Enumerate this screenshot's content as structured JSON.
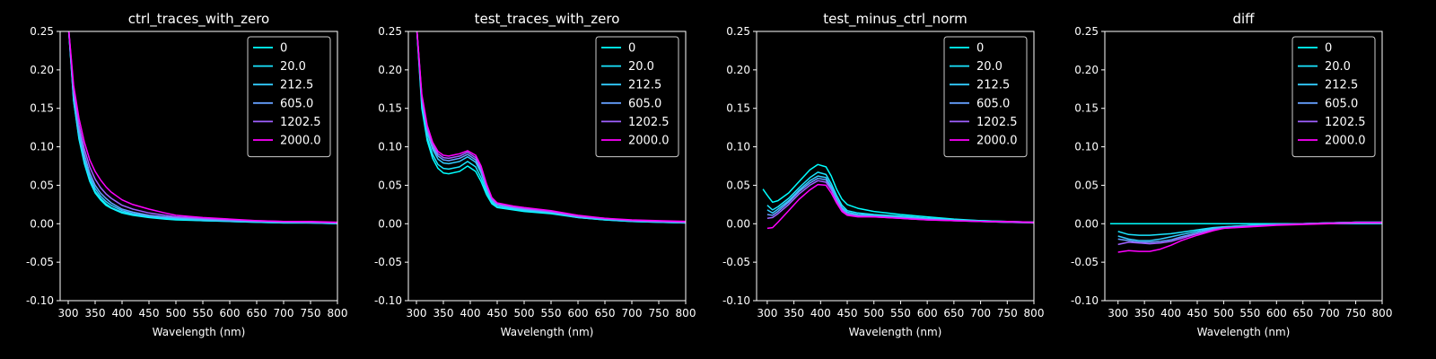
{
  "chart_data": [
    {
      "type": "line",
      "title": "ctrl_traces_with_zero",
      "xlabel": "Wavelength (nm)",
      "ylabel": "",
      "xlim": [
        285,
        800
      ],
      "ylim": [
        -0.1,
        0.25
      ],
      "xticks": [
        300,
        350,
        400,
        450,
        500,
        550,
        600,
        650,
        700,
        750,
        800
      ],
      "yticks": [
        -0.1,
        -0.05,
        0.0,
        0.05,
        0.1,
        0.15,
        0.2,
        0.25
      ],
      "legend": "top-right",
      "x": [
        300,
        310,
        320,
        330,
        340,
        350,
        360,
        370,
        380,
        400,
        420,
        450,
        480,
        500,
        550,
        600,
        650,
        700,
        750,
        800
      ],
      "series": [
        {
          "name": "0",
          "color": "#00ffff",
          "values": [
            0.26,
            0.16,
            0.11,
            0.078,
            0.055,
            0.04,
            0.031,
            0.024,
            0.02,
            0.014,
            0.011,
            0.008,
            0.006,
            0.005,
            0.004,
            0.003,
            0.002,
            0.001,
            0.001,
            0.0
          ]
        },
        {
          "name": "20.0",
          "color": "#1ae5ff",
          "values": [
            0.26,
            0.16,
            0.112,
            0.08,
            0.057,
            0.042,
            0.033,
            0.026,
            0.021,
            0.015,
            0.012,
            0.009,
            0.007,
            0.006,
            0.004,
            0.003,
            0.002,
            0.001,
            0.001,
            0.0
          ]
        },
        {
          "name": "212.5",
          "color": "#33ccff",
          "values": [
            0.26,
            0.165,
            0.116,
            0.084,
            0.061,
            0.046,
            0.036,
            0.029,
            0.024,
            0.017,
            0.013,
            0.01,
            0.008,
            0.007,
            0.005,
            0.004,
            0.003,
            0.002,
            0.001,
            0.001
          ]
        },
        {
          "name": "605.0",
          "color": "#66a0ff",
          "values": [
            0.26,
            0.17,
            0.122,
            0.09,
            0.066,
            0.05,
            0.04,
            0.033,
            0.027,
            0.019,
            0.015,
            0.011,
            0.009,
            0.008,
            0.006,
            0.004,
            0.003,
            0.002,
            0.002,
            0.001
          ]
        },
        {
          "name": "1202.5",
          "color": "#a060ff",
          "values": [
            0.26,
            0.175,
            0.128,
            0.097,
            0.074,
            0.058,
            0.047,
            0.039,
            0.033,
            0.024,
            0.019,
            0.014,
            0.011,
            0.009,
            0.007,
            0.005,
            0.004,
            0.003,
            0.002,
            0.001
          ]
        },
        {
          "name": "2000.0",
          "color": "#ff00ff",
          "values": [
            0.26,
            0.18,
            0.137,
            0.106,
            0.083,
            0.068,
            0.057,
            0.048,
            0.041,
            0.031,
            0.025,
            0.019,
            0.014,
            0.011,
            0.008,
            0.006,
            0.004,
            0.003,
            0.003,
            0.002
          ]
        }
      ]
    },
    {
      "type": "line",
      "title": "test_traces_with_zero",
      "xlabel": "Wavelength (nm)",
      "ylabel": "",
      "xlim": [
        285,
        800
      ],
      "ylim": [
        -0.1,
        0.25
      ],
      "xticks": [
        300,
        350,
        400,
        450,
        500,
        550,
        600,
        650,
        700,
        750,
        800
      ],
      "yticks": [
        -0.1,
        -0.05,
        0.0,
        0.05,
        0.1,
        0.15,
        0.2,
        0.25
      ],
      "legend": "top-right",
      "x": [
        300,
        310,
        320,
        330,
        340,
        350,
        360,
        380,
        395,
        410,
        420,
        430,
        440,
        450,
        480,
        500,
        550,
        600,
        650,
        700,
        750,
        800
      ],
      "series": [
        {
          "name": "0",
          "color": "#00ffff",
          "values": [
            0.26,
            0.15,
            0.108,
            0.085,
            0.072,
            0.066,
            0.065,
            0.068,
            0.075,
            0.068,
            0.055,
            0.038,
            0.026,
            0.021,
            0.018,
            0.016,
            0.013,
            0.008,
            0.005,
            0.003,
            0.002,
            0.001
          ]
        },
        {
          "name": "20.0",
          "color": "#1ae5ff",
          "values": [
            0.26,
            0.155,
            0.112,
            0.09,
            0.077,
            0.072,
            0.071,
            0.074,
            0.081,
            0.074,
            0.06,
            0.042,
            0.028,
            0.022,
            0.019,
            0.017,
            0.014,
            0.008,
            0.005,
            0.003,
            0.002,
            0.001
          ]
        },
        {
          "name": "212.5",
          "color": "#33ccff",
          "values": [
            0.26,
            0.16,
            0.118,
            0.097,
            0.084,
            0.079,
            0.078,
            0.081,
            0.087,
            0.08,
            0.066,
            0.046,
            0.03,
            0.024,
            0.02,
            0.018,
            0.015,
            0.009,
            0.006,
            0.004,
            0.003,
            0.002
          ]
        },
        {
          "name": "605.0",
          "color": "#66a0ff",
          "values": [
            0.26,
            0.163,
            0.122,
            0.1,
            0.088,
            0.083,
            0.082,
            0.085,
            0.09,
            0.083,
            0.069,
            0.048,
            0.031,
            0.025,
            0.021,
            0.019,
            0.015,
            0.009,
            0.006,
            0.004,
            0.003,
            0.002
          ]
        },
        {
          "name": "1202.5",
          "color": "#a060ff",
          "values": [
            0.26,
            0.165,
            0.125,
            0.103,
            0.091,
            0.086,
            0.085,
            0.088,
            0.093,
            0.086,
            0.072,
            0.05,
            0.033,
            0.026,
            0.022,
            0.02,
            0.016,
            0.01,
            0.007,
            0.004,
            0.003,
            0.002
          ]
        },
        {
          "name": "2000.0",
          "color": "#ff00ff",
          "values": [
            0.26,
            0.168,
            0.128,
            0.106,
            0.094,
            0.089,
            0.088,
            0.091,
            0.095,
            0.089,
            0.075,
            0.052,
            0.034,
            0.027,
            0.023,
            0.021,
            0.017,
            0.011,
            0.007,
            0.005,
            0.004,
            0.003
          ]
        }
      ]
    },
    {
      "type": "line",
      "title": "test_minus_ctrl_norm",
      "xlabel": "Wavelength (nm)",
      "ylabel": "",
      "xlim": [
        280,
        800
      ],
      "ylim": [
        -0.1,
        0.25
      ],
      "xticks": [
        300,
        350,
        400,
        450,
        500,
        550,
        600,
        650,
        700,
        750,
        800
      ],
      "yticks": [
        -0.1,
        -0.05,
        0.0,
        0.05,
        0.1,
        0.15,
        0.2,
        0.25
      ],
      "legend": "top-right",
      "x": [
        292,
        300,
        310,
        320,
        340,
        360,
        380,
        395,
        410,
        420,
        430,
        440,
        450,
        470,
        500,
        550,
        600,
        650,
        700,
        750,
        800
      ],
      "series": [
        {
          "name": "0",
          "color": "#00ffff",
          "values": [
            0.045,
            0.037,
            0.028,
            0.03,
            0.04,
            0.055,
            0.07,
            0.077,
            0.074,
            0.062,
            0.045,
            0.032,
            0.025,
            0.02,
            0.016,
            0.012,
            0.009,
            0.006,
            0.004,
            0.003,
            0.002
          ]
        },
        {
          "name": "20.0",
          "color": "#1ae5ff",
          "values": [
            null,
            0.024,
            0.018,
            0.022,
            0.033,
            0.047,
            0.06,
            0.067,
            0.064,
            0.052,
            0.037,
            0.024,
            0.017,
            0.014,
            0.012,
            0.01,
            0.007,
            0.005,
            0.004,
            0.003,
            0.002
          ]
        },
        {
          "name": "212.5",
          "color": "#33ccff",
          "values": [
            null,
            0.018,
            0.014,
            0.019,
            0.03,
            0.044,
            0.056,
            0.062,
            0.06,
            0.048,
            0.033,
            0.021,
            0.015,
            0.012,
            0.011,
            0.009,
            0.007,
            0.005,
            0.003,
            0.002,
            0.002
          ]
        },
        {
          "name": "605.0",
          "color": "#66a0ff",
          "values": [
            null,
            0.012,
            0.011,
            0.016,
            0.028,
            0.042,
            0.053,
            0.059,
            0.057,
            0.046,
            0.031,
            0.019,
            0.013,
            0.011,
            0.01,
            0.008,
            0.006,
            0.004,
            0.003,
            0.002,
            0.001
          ]
        },
        {
          "name": "1202.5",
          "color": "#a060ff",
          "values": [
            null,
            0.007,
            0.008,
            0.013,
            0.025,
            0.039,
            0.05,
            0.056,
            0.054,
            0.044,
            0.03,
            0.018,
            0.012,
            0.01,
            0.009,
            0.007,
            0.005,
            0.004,
            0.003,
            0.002,
            0.001
          ]
        },
        {
          "name": "2000.0",
          "color": "#ff00ff",
          "values": [
            null,
            -0.006,
            -0.005,
            0.002,
            0.017,
            0.032,
            0.044,
            0.051,
            0.05,
            0.04,
            0.027,
            0.016,
            0.011,
            0.009,
            0.009,
            0.007,
            0.005,
            0.004,
            0.003,
            0.003,
            0.002
          ]
        }
      ]
    },
    {
      "type": "line",
      "title": "diff",
      "xlabel": "Wavelength (nm)",
      "ylabel": "",
      "xlim": [
        275,
        800
      ],
      "ylim": [
        -0.1,
        0.25
      ],
      "xticks": [
        300,
        350,
        400,
        450,
        500,
        550,
        600,
        650,
        700,
        750,
        800
      ],
      "yticks": [
        -0.1,
        -0.05,
        0.0,
        0.05,
        0.1,
        0.15,
        0.2,
        0.25
      ],
      "legend": "top-right",
      "x": [
        285,
        300,
        320,
        340,
        360,
        380,
        400,
        420,
        450,
        480,
        500,
        550,
        600,
        650,
        700,
        750,
        800
      ],
      "series": [
        {
          "name": "0",
          "color": "#00ffff",
          "values": [
            0.0,
            0.0,
            0.0,
            0.0,
            0.0,
            0.0,
            0.0,
            0.0,
            0.0,
            0.0,
            0.0,
            0.0,
            0.0,
            0.0,
            0.0,
            0.0,
            0.0
          ]
        },
        {
          "name": "20.0",
          "color": "#1ae5ff",
          "values": [
            null,
            -0.01,
            -0.014,
            -0.015,
            -0.015,
            -0.014,
            -0.013,
            -0.011,
            -0.008,
            -0.005,
            -0.004,
            -0.002,
            -0.001,
            0.0,
            0.001,
            0.002,
            0.002
          ]
        },
        {
          "name": "212.5",
          "color": "#33ccff",
          "values": [
            null,
            -0.016,
            -0.02,
            -0.022,
            -0.022,
            -0.02,
            -0.017,
            -0.014,
            -0.01,
            -0.006,
            -0.004,
            -0.002,
            -0.001,
            0.0,
            0.001,
            0.002,
            0.002
          ]
        },
        {
          "name": "605.0",
          "color": "#66a0ff",
          "values": [
            null,
            -0.02,
            -0.022,
            -0.024,
            -0.024,
            -0.023,
            -0.021,
            -0.017,
            -0.012,
            -0.007,
            -0.005,
            -0.003,
            -0.001,
            0.0,
            0.001,
            0.002,
            0.002
          ]
        },
        {
          "name": "1202.5",
          "color": "#a060ff",
          "values": [
            null,
            -0.027,
            -0.024,
            -0.025,
            -0.026,
            -0.025,
            -0.023,
            -0.019,
            -0.013,
            -0.008,
            -0.006,
            -0.003,
            -0.001,
            0.0,
            0.001,
            0.002,
            0.002
          ]
        },
        {
          "name": "2000.0",
          "color": "#ff00ff",
          "values": [
            null,
            -0.037,
            -0.035,
            -0.036,
            -0.036,
            -0.033,
            -0.028,
            -0.022,
            -0.015,
            -0.009,
            -0.006,
            -0.004,
            -0.002,
            -0.001,
            0.0,
            0.001,
            0.001
          ]
        }
      ]
    }
  ]
}
